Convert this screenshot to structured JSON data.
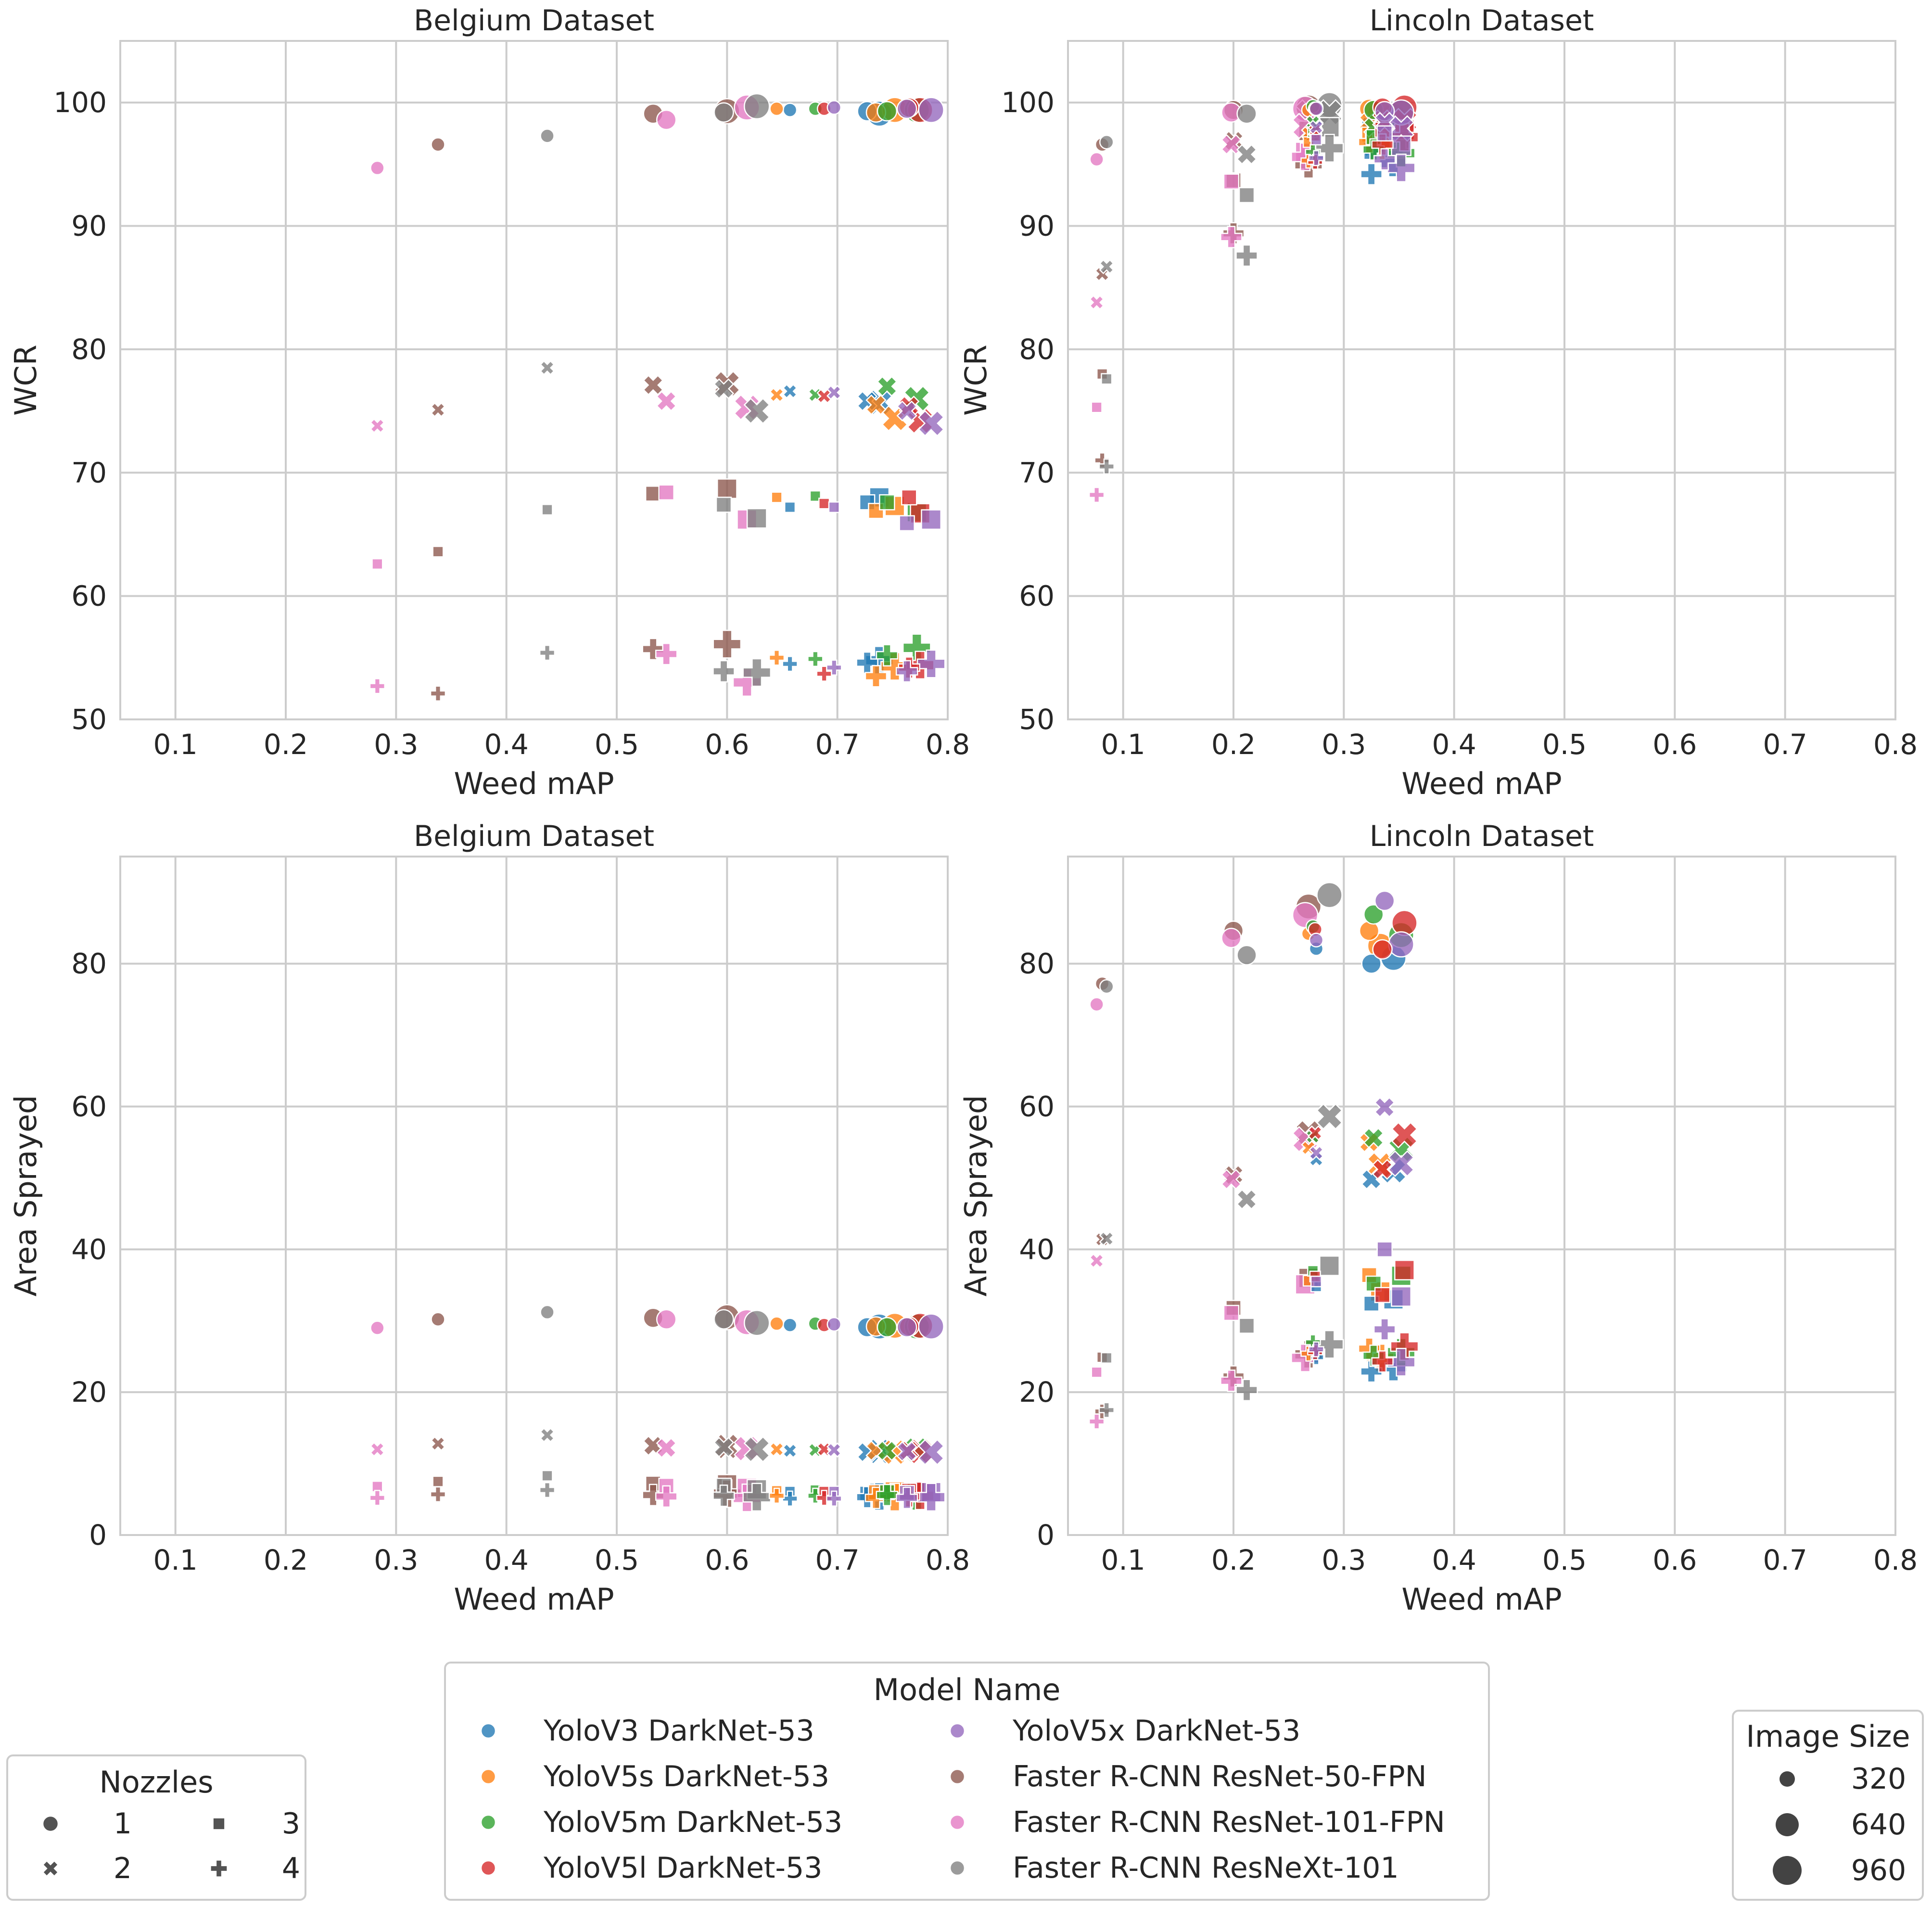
{
  "colors": {
    "YoloV3 DarkNet-53": "#1f77b4",
    "YoloV5s DarkNet-53": "#ff7f0e",
    "YoloV5m DarkNet-53": "#2ca02c",
    "YoloV5l DarkNet-53": "#d62728",
    "YoloV5x DarkNet-53": "#9467bd",
    "Faster R-CNN ResNet-50-FPN": "#8c564b",
    "Faster R-CNN ResNet-101-FPN": "#e377c2",
    "Faster R-CNN ResNeXt-101": "#7f7f7f"
  },
  "legends": {
    "nozzles": {
      "title": "Nozzles",
      "items": [
        {
          "label": "1",
          "marker": "circle"
        },
        {
          "label": "2",
          "marker": "x"
        },
        {
          "label": "3",
          "marker": "square"
        },
        {
          "label": "4",
          "marker": "plus"
        }
      ]
    },
    "model": {
      "title": "Model Name",
      "items": [
        "YoloV3 DarkNet-53",
        "YoloV5s DarkNet-53",
        "YoloV5m DarkNet-53",
        "YoloV5l DarkNet-53",
        "YoloV5x DarkNet-53",
        "Faster R-CNN ResNet-50-FPN",
        "Faster R-CNN ResNet-101-FPN",
        "Faster R-CNN ResNeXt-101"
      ]
    },
    "size": {
      "title": "Image Size",
      "items": [
        "320",
        "640",
        "960"
      ]
    }
  },
  "chart_data": [
    {
      "type": "scatter",
      "title": "Belgium Dataset",
      "xlabel": "Weed mAP",
      "ylabel": "WCR",
      "xlim": [
        0.05,
        0.8
      ],
      "ylim": [
        50,
        105
      ],
      "xticks": [
        "0.1",
        "0.2",
        "0.3",
        "0.4",
        "0.5",
        "0.6",
        "0.7",
        "0.8"
      ],
      "yticks": [
        "50",
        "60",
        "70",
        "80",
        "90",
        "100"
      ],
      "metric": "wcr",
      "dataset": "belgium"
    },
    {
      "type": "scatter",
      "title": "Lincoln Dataset",
      "xlabel": "Weed mAP",
      "ylabel": "WCR",
      "xlim": [
        0.05,
        0.8
      ],
      "ylim": [
        50,
        105
      ],
      "xticks": [
        "0.1",
        "0.2",
        "0.3",
        "0.4",
        "0.5",
        "0.6",
        "0.7",
        "0.8"
      ],
      "yticks": [
        "50",
        "60",
        "70",
        "80",
        "90",
        "100"
      ],
      "metric": "wcr",
      "dataset": "lincoln"
    },
    {
      "type": "scatter",
      "title": "Belgium Dataset",
      "xlabel": "Weed mAP",
      "ylabel": "Area Sprayed",
      "xlim": [
        0.05,
        0.8
      ],
      "ylim": [
        0,
        95
      ],
      "xticks": [
        "0.1",
        "0.2",
        "0.3",
        "0.4",
        "0.5",
        "0.6",
        "0.7",
        "0.8"
      ],
      "yticks": [
        "0",
        "20",
        "40",
        "60",
        "80"
      ],
      "metric": "area",
      "dataset": "belgium"
    },
    {
      "type": "scatter",
      "title": "Lincoln Dataset",
      "xlabel": "Weed mAP",
      "ylabel": "Area Sprayed",
      "xlim": [
        0.05,
        0.8
      ],
      "ylim": [
        0,
        95
      ],
      "xticks": [
        "0.1",
        "0.2",
        "0.3",
        "0.4",
        "0.5",
        "0.6",
        "0.7",
        "0.8"
      ],
      "yticks": [
        "0",
        "20",
        "40",
        "60",
        "80"
      ],
      "metric": "area",
      "dataset": "lincoln"
    }
  ],
  "points": {
    "belgium": [
      {
        "model": "YoloV3 DarkNet-53",
        "size": 320,
        "map": 0.657,
        "wcr": [
          99.4,
          76.6,
          67.2,
          54.5
        ],
        "area": [
          29.4,
          11.8,
          6.1,
          5.1
        ]
      },
      {
        "model": "YoloV3 DarkNet-53",
        "size": 640,
        "map": 0.727,
        "wcr": [
          99.3,
          75.8,
          67.6,
          54.6
        ],
        "area": [
          29.1,
          11.6,
          5.8,
          5.3
        ]
      },
      {
        "model": "YoloV3 DarkNet-53",
        "size": 960,
        "map": 0.738,
        "wcr": [
          99.1,
          75.7,
          68.0,
          54.8
        ],
        "area": [
          29.2,
          11.7,
          5.9,
          5.4
        ]
      },
      {
        "model": "YoloV5s DarkNet-53",
        "size": 320,
        "map": 0.645,
        "wcr": [
          99.5,
          76.3,
          68.0,
          55.0
        ],
        "area": [
          29.6,
          12.0,
          6.2,
          5.5
        ]
      },
      {
        "model": "YoloV5s DarkNet-53",
        "size": 640,
        "map": 0.735,
        "wcr": [
          99.2,
          75.5,
          66.9,
          53.5
        ],
        "area": [
          29.2,
          11.8,
          6.0,
          5.2
        ]
      },
      {
        "model": "YoloV5s DarkNet-53",
        "size": 960,
        "map": 0.752,
        "wcr": [
          99.4,
          74.4,
          67.3,
          54.3
        ],
        "area": [
          29.3,
          11.6,
          6.1,
          5.3
        ]
      },
      {
        "model": "YoloV5m DarkNet-53",
        "size": 320,
        "map": 0.68,
        "wcr": [
          99.5,
          76.3,
          68.1,
          54.9
        ],
        "area": [
          29.6,
          11.9,
          6.3,
          5.5
        ]
      },
      {
        "model": "YoloV5m DarkNet-53",
        "size": 640,
        "map": 0.745,
        "wcr": [
          99.3,
          77.0,
          67.6,
          55.2
        ],
        "area": [
          29.1,
          11.8,
          6.0,
          5.6
        ]
      },
      {
        "model": "YoloV5m DarkNet-53",
        "size": 960,
        "map": 0.772,
        "wcr": [
          99.4,
          76.0,
          66.8,
          55.8
        ],
        "area": [
          29.2,
          11.9,
          6.0,
          5.4
        ]
      },
      {
        "model": "YoloV5l DarkNet-53",
        "size": 320,
        "map": 0.688,
        "wcr": [
          99.5,
          76.2,
          67.5,
          53.7
        ],
        "area": [
          29.4,
          12.0,
          6.1,
          5.2
        ]
      },
      {
        "model": "YoloV5l DarkNet-53",
        "size": 640,
        "map": 0.765,
        "wcr": [
          99.6,
          75.4,
          68.0,
          54.2
        ],
        "area": [
          29.2,
          11.8,
          6.2,
          5.4
        ]
      },
      {
        "model": "YoloV5l DarkNet-53",
        "size": 960,
        "map": 0.775,
        "wcr": [
          99.4,
          74.2,
          66.7,
          54.4
        ],
        "area": [
          29.3,
          11.7,
          6.0,
          5.5
        ]
      },
      {
        "model": "YoloV5x DarkNet-53",
        "size": 320,
        "map": 0.697,
        "wcr": [
          99.6,
          76.5,
          67.2,
          54.2
        ],
        "area": [
          29.5,
          11.9,
          6.1,
          5.1
        ]
      },
      {
        "model": "YoloV5x DarkNet-53",
        "size": 640,
        "map": 0.763,
        "wcr": [
          99.5,
          75.0,
          65.9,
          53.9
        ],
        "area": [
          29.1,
          11.7,
          5.9,
          5.2
        ]
      },
      {
        "model": "YoloV5x DarkNet-53",
        "size": 960,
        "map": 0.785,
        "wcr": [
          99.4,
          74.0,
          66.2,
          54.5
        ],
        "area": [
          29.2,
          11.6,
          6.0,
          5.3
        ]
      },
      {
        "model": "Faster R-CNN ResNet-50-FPN",
        "size": 320,
        "map": 0.338,
        "wcr": [
          96.6,
          75.1,
          63.6,
          52.1
        ],
        "area": [
          30.2,
          12.8,
          7.5,
          5.7
        ]
      },
      {
        "model": "Faster R-CNN ResNet-50-FPN",
        "size": 640,
        "map": 0.533,
        "wcr": [
          99.1,
          77.1,
          68.3,
          55.7
        ],
        "area": [
          30.4,
          12.5,
          7.2,
          5.6
        ]
      },
      {
        "model": "Faster R-CNN ResNet-50-FPN",
        "size": 960,
        "map": 0.6,
        "wcr": [
          99.3,
          77.2,
          68.7,
          56.1
        ],
        "area": [
          30.5,
          12.4,
          7.1,
          5.8
        ]
      },
      {
        "model": "Faster R-CNN ResNet-101-FPN",
        "size": 320,
        "map": 0.283,
        "wcr": [
          94.7,
          73.8,
          62.6,
          52.7
        ],
        "area": [
          29.0,
          12.0,
          6.8,
          5.2
        ]
      },
      {
        "model": "Faster R-CNN ResNet-101-FPN",
        "size": 640,
        "map": 0.545,
        "wcr": [
          98.6,
          75.8,
          68.4,
          55.3
        ],
        "area": [
          30.2,
          12.2,
          6.9,
          5.4
        ]
      },
      {
        "model": "Faster R-CNN ResNet-101-FPN",
        "size": 960,
        "map": 0.618,
        "wcr": [
          99.6,
          75.3,
          66.2,
          53.0
        ],
        "area": [
          29.8,
          12.1,
          6.6,
          5.2
        ]
      },
      {
        "model": "Faster R-CNN ResNeXt-101",
        "size": 320,
        "map": 0.437,
        "wcr": [
          97.3,
          78.5,
          67.0,
          55.4
        ],
        "area": [
          31.2,
          14.0,
          8.3,
          6.3
        ]
      },
      {
        "model": "Faster R-CNN ResNeXt-101",
        "size": 640,
        "map": 0.597,
        "wcr": [
          99.2,
          76.8,
          67.4,
          53.9
        ],
        "area": [
          30.2,
          12.3,
          6.9,
          5.5
        ]
      },
      {
        "model": "Faster R-CNN ResNeXt-101",
        "size": 960,
        "map": 0.627,
        "wcr": [
          99.7,
          75.0,
          66.3,
          53.8
        ],
        "area": [
          29.7,
          12.0,
          6.4,
          5.3
        ]
      }
    ],
    "lincoln": [
      {
        "model": "YoloV3 DarkNet-53",
        "size": 320,
        "map": 0.275,
        "wcr": [
          99.6,
          98.1,
          97.8,
          95.6
        ],
        "area": [
          82.1,
          52.6,
          34.8,
          24.9
        ]
      },
      {
        "model": "YoloV3 DarkNet-53",
        "size": 640,
        "map": 0.325,
        "wcr": [
          98.3,
          96.4,
          96.0,
          94.2
        ],
        "area": [
          80.0,
          49.8,
          32.4,
          22.9
        ]
      },
      {
        "model": "YoloV3 DarkNet-53",
        "size": 960,
        "map": 0.345,
        "wcr": [
          98.9,
          97.1,
          96.3,
          95.1
        ],
        "area": [
          80.8,
          51.0,
          33.0,
          23.5
        ]
      },
      {
        "model": "YoloV5s DarkNet-53",
        "size": 320,
        "map": 0.268,
        "wcr": [
          99.4,
          97.5,
          96.8,
          95.3
        ],
        "area": [
          84.2,
          54.2,
          35.6,
          25.4
        ]
      },
      {
        "model": "YoloV5s DarkNet-53",
        "size": 640,
        "map": 0.323,
        "wcr": [
          99.5,
          98.4,
          97.4,
          96.8
        ],
        "area": [
          84.6,
          55.0,
          36.4,
          26.1
        ]
      },
      {
        "model": "YoloV5s DarkNet-53",
        "size": 960,
        "map": 0.333,
        "wcr": [
          99.1,
          97.9,
          97.1,
          96.5
        ],
        "area": [
          82.5,
          51.8,
          34.1,
          24.8
        ]
      },
      {
        "model": "YoloV5m DarkNet-53",
        "size": 320,
        "map": 0.272,
        "wcr": [
          99.7,
          98.4,
          97.6,
          96.0
        ],
        "area": [
          85.2,
          55.8,
          37.0,
          27.0
        ]
      },
      {
        "model": "YoloV5m DarkNet-53",
        "size": 640,
        "map": 0.327,
        "wcr": [
          99.4,
          98.0,
          97.2,
          96.2
        ],
        "area": [
          86.9,
          55.6,
          35.2,
          25.1
        ]
      },
      {
        "model": "YoloV5m DarkNet-53",
        "size": 960,
        "map": 0.352,
        "wcr": [
          99.2,
          97.6,
          96.9,
          95.9
        ],
        "area": [
          84.0,
          54.0,
          36.3,
          25.6
        ]
      },
      {
        "model": "YoloV5l DarkNet-53",
        "size": 320,
        "map": 0.274,
        "wcr": [
          99.5,
          97.7,
          97.3,
          95.2
        ],
        "area": [
          84.8,
          56.3,
          36.2,
          25.6
        ]
      },
      {
        "model": "YoloV5l DarkNet-53",
        "size": 640,
        "map": 0.335,
        "wcr": [
          99.6,
          98.6,
          97.8,
          96.6
        ],
        "area": [
          82.0,
          51.2,
          33.6,
          24.3
        ]
      },
      {
        "model": "YoloV5l DarkNet-53",
        "size": 960,
        "map": 0.355,
        "wcr": [
          99.6,
          98.5,
          97.8,
          97.2
        ],
        "area": [
          85.7,
          56.0,
          37.1,
          26.4
        ]
      },
      {
        "model": "YoloV5x DarkNet-53",
        "size": 320,
        "map": 0.275,
        "wcr": [
          99.5,
          98.0,
          97.0,
          95.5
        ],
        "area": [
          83.3,
          53.5,
          35.5,
          26.0
        ]
      },
      {
        "model": "YoloV5x DarkNet-53",
        "size": 640,
        "map": 0.337,
        "wcr": [
          99.3,
          98.4,
          97.5,
          95.4
        ],
        "area": [
          88.8,
          59.9,
          40.0,
          28.8
        ]
      },
      {
        "model": "YoloV5x DarkNet-53",
        "size": 960,
        "map": 0.352,
        "wcr": [
          99.2,
          97.9,
          96.5,
          94.7
        ],
        "area": [
          82.7,
          52.0,
          33.4,
          24.2
        ]
      },
      {
        "model": "Faster R-CNN ResNet-50-FPN",
        "size": 320,
        "map": 0.081,
        "wcr": [
          96.6,
          86.1,
          78.0,
          71.0
        ],
        "area": [
          77.2,
          41.4,
          24.9,
          17.3
        ]
      },
      {
        "model": "Faster R-CNN ResNet-50-FPN",
        "size": 640,
        "map": 0.2,
        "wcr": [
          99.4,
          96.9,
          93.7,
          89.4
        ],
        "area": [
          84.6,
          50.4,
          31.8,
          22.2
        ]
      },
      {
        "model": "Faster R-CNN ResNet-50-FPN",
        "size": 960,
        "map": 0.268,
        "wcr": [
          99.6,
          99.2,
          97.7,
          95.0
        ],
        "area": [
          88.0,
          56.3,
          36.0,
          25.3
        ]
      },
      {
        "model": "Faster R-CNN ResNet-101-FPN",
        "size": 320,
        "map": 0.076,
        "wcr": [
          95.4,
          83.8,
          75.3,
          68.2
        ],
        "area": [
          74.3,
          38.4,
          22.8,
          15.9
        ]
      },
      {
        "model": "Faster R-CNN ResNet-101-FPN",
        "size": 640,
        "map": 0.198,
        "wcr": [
          99.2,
          96.6,
          93.6,
          89.1
        ],
        "area": [
          83.6,
          49.8,
          31.1,
          21.6
        ]
      },
      {
        "model": "Faster R-CNN ResNet-101-FPN",
        "size": 960,
        "map": 0.265,
        "wcr": [
          99.5,
          98.1,
          96.0,
          95.6
        ],
        "area": [
          86.8,
          55.4,
          35.1,
          24.8
        ]
      },
      {
        "model": "Faster R-CNN ResNeXt-101",
        "size": 320,
        "map": 0.085,
        "wcr": [
          96.8,
          86.7,
          77.6,
          70.5
        ],
        "area": [
          76.8,
          41.5,
          24.8,
          17.5
        ]
      },
      {
        "model": "Faster R-CNN ResNeXt-101",
        "size": 640,
        "map": 0.212,
        "wcr": [
          99.1,
          95.8,
          92.5,
          87.6
        ],
        "area": [
          81.2,
          47.0,
          29.3,
          20.3
        ]
      },
      {
        "model": "Faster R-CNN ResNeXt-101",
        "size": 960,
        "map": 0.287,
        "wcr": [
          99.8,
          99.2,
          98.0,
          96.3
        ],
        "area": [
          89.6,
          58.6,
          37.7,
          26.7
        ]
      }
    ]
  }
}
